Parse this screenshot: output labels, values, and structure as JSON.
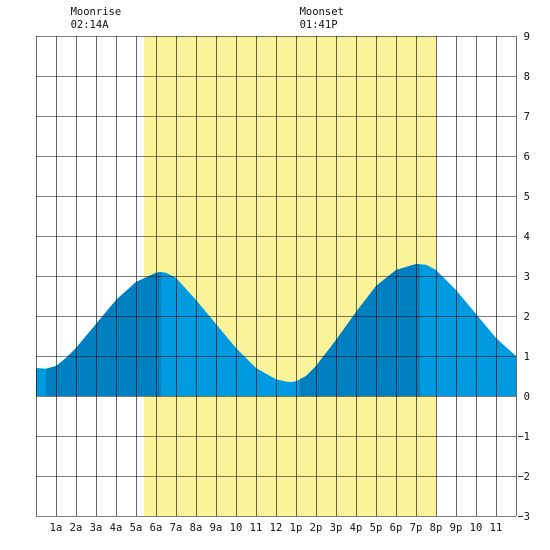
{
  "moonrise": {
    "label": "Moonrise",
    "time": "02:14A",
    "hour": 2.23
  },
  "moonset": {
    "label": "Moonset",
    "time": "01:41P",
    "hour": 13.68
  },
  "colors": {
    "daylight": "#fbf39a",
    "tide_light": "#009ae0",
    "tide_dark": "#0080c0",
    "grid": "#000000",
    "background": "#ffffff"
  },
  "chart_data": {
    "type": "area",
    "title": "",
    "xlabel": "",
    "ylabel": "",
    "xlim": [
      0,
      24
    ],
    "ylim": [
      -3,
      9
    ],
    "grid": true,
    "x_tick_labels": [
      "1a",
      "2a",
      "3a",
      "4a",
      "5a",
      "6a",
      "7a",
      "8a",
      "9a",
      "10",
      "11",
      "12",
      "1p",
      "2p",
      "3p",
      "4p",
      "5p",
      "6p",
      "7p",
      "8p",
      "9p",
      "10",
      "11"
    ],
    "y_ticks": [
      -3,
      -2,
      -1,
      0,
      1,
      2,
      3,
      4,
      5,
      6,
      7,
      8,
      9
    ],
    "daylight": {
      "start": 5.4,
      "end": 20.0
    },
    "dark_bands": [
      {
        "start": 0.5,
        "end": 6.25
      },
      {
        "start": 13.2,
        "end": 19.2
      }
    ],
    "series": [
      {
        "x": [
          0,
          0.5,
          1,
          1.5,
          2,
          3,
          4,
          5,
          6,
          6.25,
          6.5,
          7,
          8,
          9,
          10,
          11,
          12,
          12.5,
          12.75,
          13,
          13.5,
          14,
          15,
          16,
          17,
          18,
          19,
          19.5,
          20,
          21,
          22,
          23,
          24
        ],
        "y": [
          0.7,
          0.68,
          0.75,
          0.95,
          1.2,
          1.8,
          2.4,
          2.85,
          3.08,
          3.1,
          3.08,
          2.95,
          2.4,
          1.8,
          1.2,
          0.7,
          0.42,
          0.36,
          0.35,
          0.37,
          0.5,
          0.75,
          1.4,
          2.1,
          2.75,
          3.15,
          3.3,
          3.28,
          3.15,
          2.65,
          2.05,
          1.45,
          1.0
        ]
      }
    ]
  }
}
